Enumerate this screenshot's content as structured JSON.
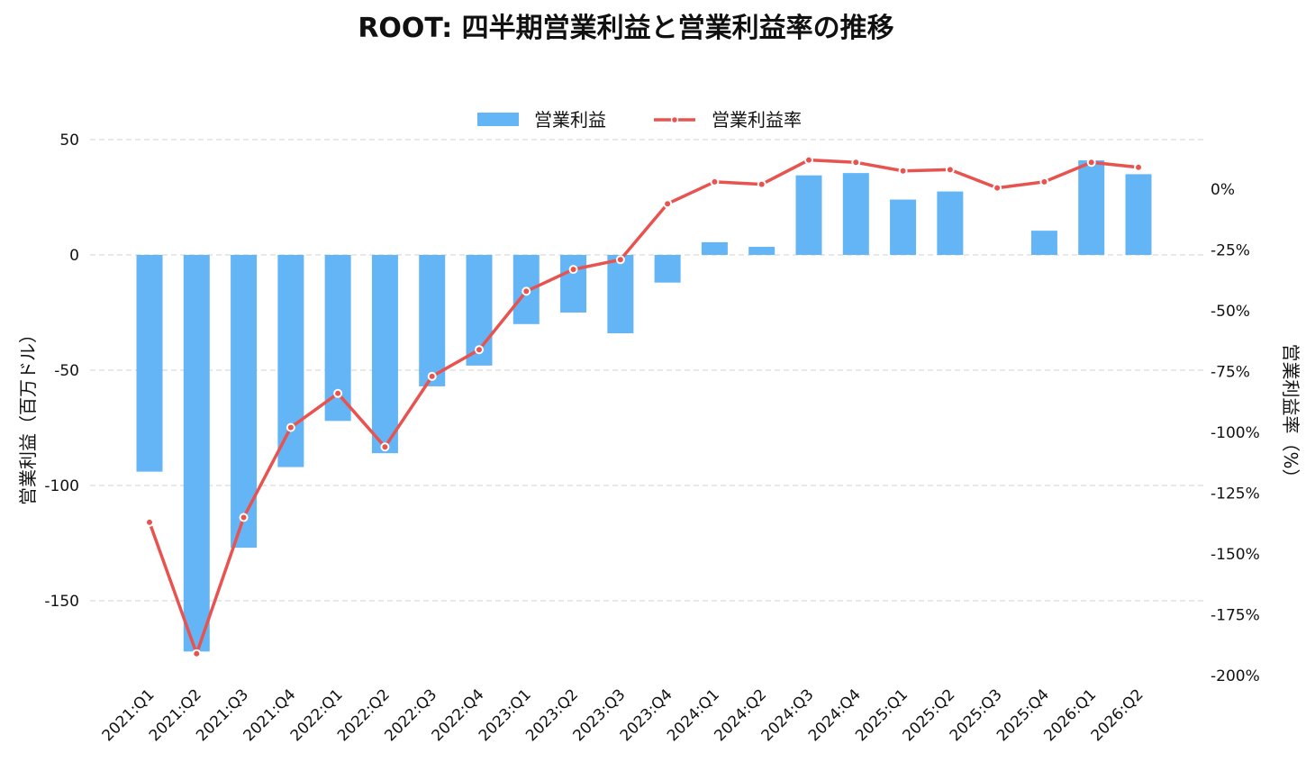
{
  "chart_data": {
    "type": "bar",
    "title": "ROOT: 四半期営業利益と営業利益率の推移",
    "categories": [
      "2021:Q1",
      "2021:Q2",
      "2021:Q3",
      "2021:Q4",
      "2022:Q1",
      "2022:Q2",
      "2022:Q3",
      "2022:Q4",
      "2023:Q1",
      "2023:Q2",
      "2023:Q3",
      "2023:Q4",
      "2024:Q1",
      "2024:Q2",
      "2024:Q3",
      "2024:Q4",
      "2025:Q1",
      "2025:Q2",
      "2025:Q3",
      "2025:Q4",
      "2026:Q1",
      "2026:Q2"
    ],
    "series": [
      {
        "name": "営業利益",
        "type": "bar",
        "axis": "left",
        "color": "#64b5f6",
        "values": [
          -94,
          -172,
          -127,
          -92,
          -72,
          -86,
          -57,
          -48,
          -30,
          -25,
          -34,
          -12,
          5.5,
          3.5,
          34.5,
          35.5,
          24,
          27.5,
          0,
          10.5,
          41,
          35
        ]
      },
      {
        "name": "営業利益率",
        "type": "line",
        "axis": "right",
        "color": "#e8534f",
        "values": [
          -137,
          -191,
          -135,
          -98,
          -84,
          -106,
          -77,
          -66,
          -42,
          -33,
          -29,
          -6,
          3,
          2,
          12,
          11,
          7.5,
          8,
          0.5,
          3,
          11,
          9
        ]
      }
    ],
    "y_left": {
      "label": "営業利益（百万ドル）",
      "ticks": [
        50,
        0,
        -50,
        -100,
        -150
      ],
      "tick_labels": [
        "50",
        "0",
        "-50",
        "-100",
        "-150"
      ],
      "range": [
        -178,
        50
      ]
    },
    "y_right": {
      "label": "営業利益率（%）",
      "ticks": [
        0,
        -25,
        -50,
        -75,
        -100,
        -125,
        -150,
        -175,
        -200
      ],
      "tick_labels": [
        "0%",
        "-25%",
        "-50%",
        "-75%",
        "-100%",
        "-125%",
        "-150%",
        "-175%",
        "-200%"
      ],
      "range": [
        -200,
        20
      ]
    },
    "grid": true,
    "legend_position": "top-center"
  }
}
